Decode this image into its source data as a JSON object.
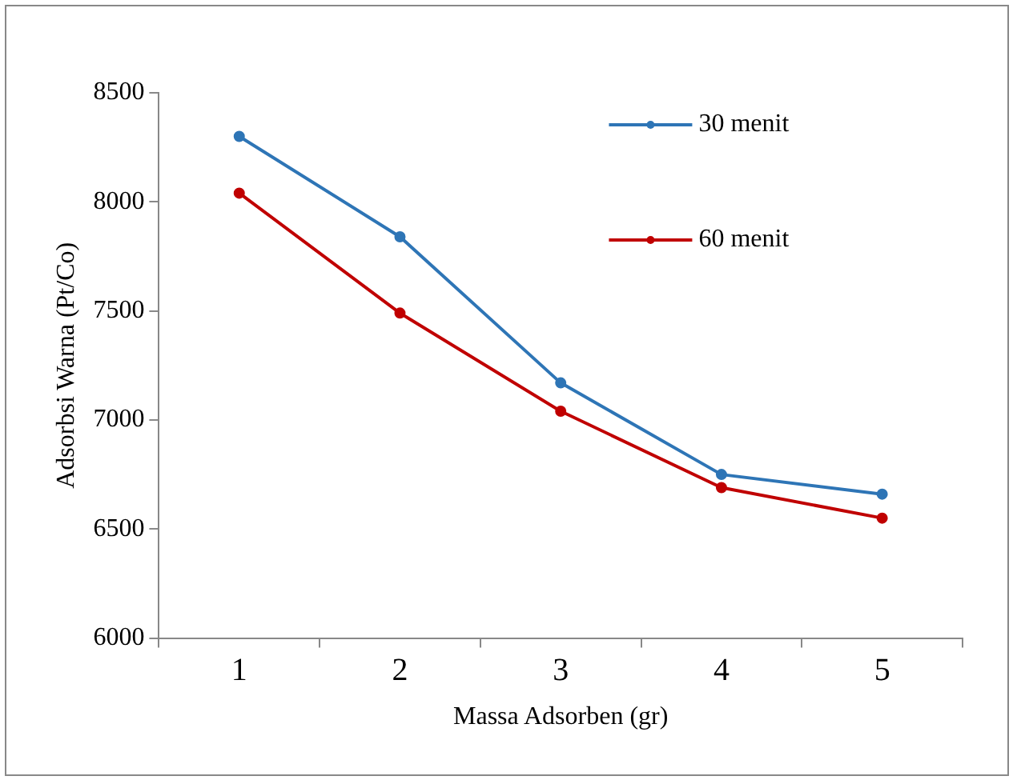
{
  "chart_data": {
    "type": "line",
    "xlabel": "Massa Adsorben (gr)",
    "ylabel": "Adsorbsi Warna (Pt/Co)",
    "categories": [
      "1",
      "2",
      "3",
      "4",
      "5"
    ],
    "series": [
      {
        "name": "30 menit",
        "color": "#2e75b6",
        "values": [
          8300,
          7840,
          7170,
          6750,
          6660
        ]
      },
      {
        "name": "60 menit",
        "color": "#c00000",
        "values": [
          8040,
          7490,
          7040,
          6690,
          6550
        ]
      }
    ],
    "ylim": [
      6000,
      8500
    ],
    "yticks": [
      6000,
      6500,
      7000,
      7500,
      8000,
      8500
    ],
    "grid": false,
    "legend": "top right",
    "marker": "circle",
    "line_style": "solid"
  }
}
